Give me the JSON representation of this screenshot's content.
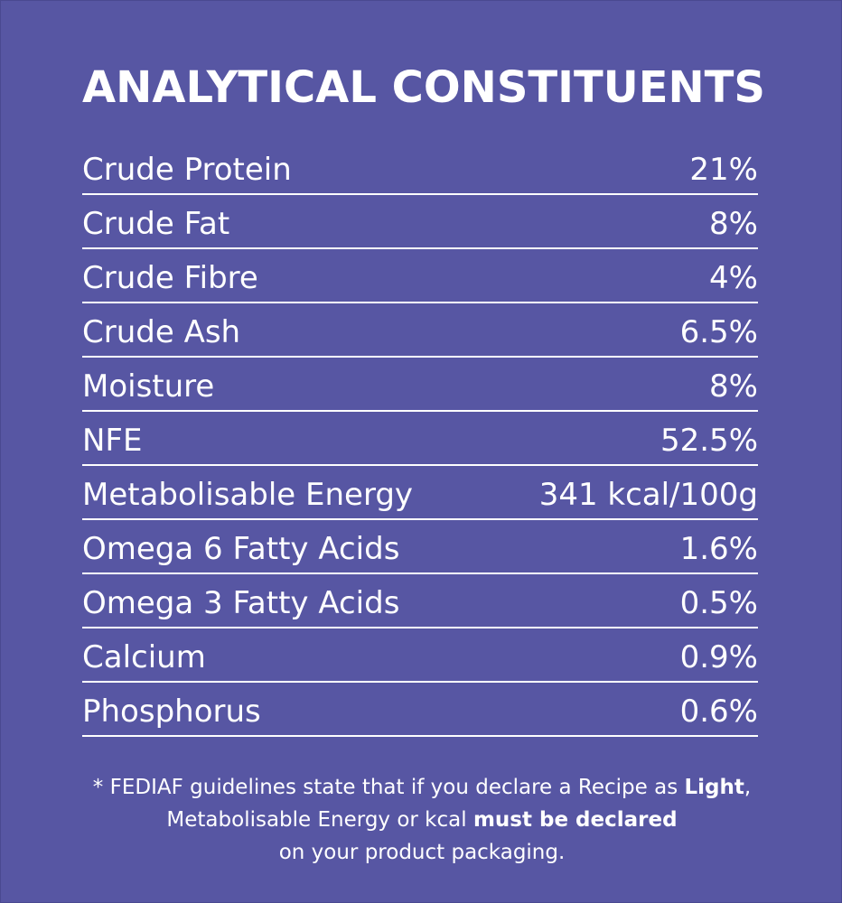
{
  "title": "ANALYTICAL CONSTITUENTS",
  "rows": [
    {
      "label": "Crude Protein",
      "value": "21%"
    },
    {
      "label": "Crude Fat",
      "value": "8%"
    },
    {
      "label": "Crude Fibre",
      "value": "4%"
    },
    {
      "label": "Crude Ash",
      "value": "6.5%"
    },
    {
      "label": "Moisture",
      "value": "8%"
    },
    {
      "label": "NFE",
      "value": "52.5%"
    },
    {
      "label": "Metabolisable Energy",
      "value": "341 kcal/100g"
    },
    {
      "label": "Omega 6 Fatty Acids",
      "value": "1.6%"
    },
    {
      "label": "Omega 3 Fatty Acids",
      "value": "0.5%"
    },
    {
      "label": "Calcium",
      "value": "0.9%"
    },
    {
      "label": "Phosphorus",
      "value": "0.6%"
    }
  ],
  "footnote": {
    "line1_text": "* FEDIAF guidelines state that if you declare a Recipe as ",
    "line1_bold": "Light",
    "line1_end": ",",
    "line2_text": "Metabolisable Energy or kcal ",
    "line2_bold": "must be declared",
    "line3_text": "on your product packaging."
  },
  "colors": {
    "background": "#5756a3",
    "text": "#ffffff"
  }
}
